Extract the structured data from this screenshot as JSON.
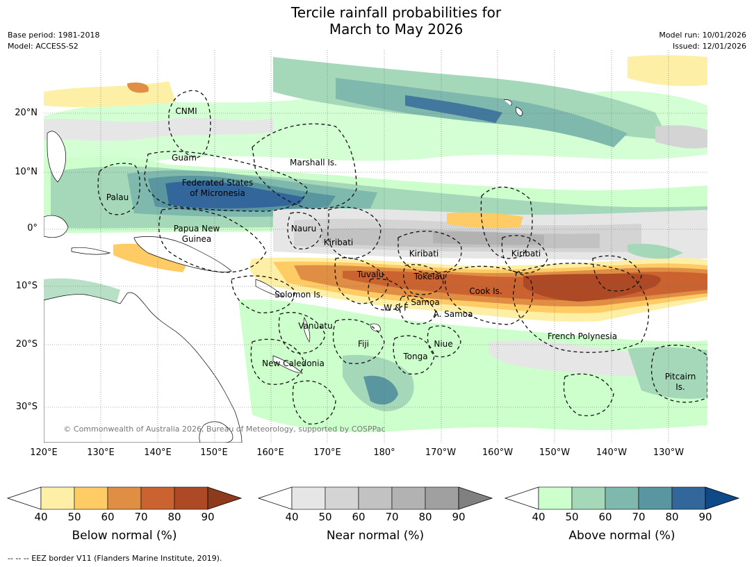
{
  "header": {
    "title_line1": "Tercile rainfall probabilities for",
    "title_line2": "March to May 2026",
    "base_period": "Base period: 1981-2018",
    "model": "Model: ACCESS-S2",
    "model_run": "Model run: 10/01/2026",
    "issued": "Issued: 12/01/2026"
  },
  "axes": {
    "lat_labels": [
      "20°N",
      "10°N",
      "0°",
      "10°S",
      "20°S",
      "30°S"
    ],
    "lon_labels": [
      "120°E",
      "130°E",
      "140°E",
      "150°E",
      "160°E",
      "170°E",
      "180°",
      "170°W",
      "160°W",
      "150°W",
      "140°W",
      "130°W"
    ]
  },
  "map_labels": {
    "cnmi": "CNMI",
    "guam": "Guam",
    "marshall": "Marshall Is.",
    "fsm_1": "Federated States",
    "fsm_2": "of Micronesia",
    "palau": "Palau",
    "png_1": "Papua New",
    "png_2": "Guinea",
    "nauru": "Nauru",
    "kiribati_w": "Kiribati",
    "kiribati_c": "Kiribati",
    "kiribati_e": "Kiribati",
    "tuvalu": "Tuvalu",
    "tokelau": "Tokelau",
    "cook": "Cook Is.",
    "solomon": "Solomon Is.",
    "wf": "W & F",
    "samoa": "Samoa",
    "asamoa": "A. Samoa",
    "vanuatu": "Vanuatu",
    "fiji": "Fiji",
    "niue": "Niue",
    "tonga": "Tonga",
    "french_polynesia": "French Polynesia",
    "new_caledonia": "New Caledonia",
    "pitcairn_1": "Pitcairn",
    "pitcairn_2": "Is.",
    "copyright": "© Commonwealth of Australia 2026, Bureau of Meteorology, supported by COSPPac"
  },
  "colorbars": [
    {
      "label": "Below normal (%)",
      "ticks": [
        "40",
        "50",
        "60",
        "70",
        "80",
        "90"
      ],
      "colors": [
        "#fdf0a6",
        "#fecb65",
        "#df8e44",
        "#cb6331",
        "#ad4a25"
      ],
      "extend_color": "#8e3a1c"
    },
    {
      "label": "Near normal (%)",
      "ticks": [
        "40",
        "50",
        "60",
        "70",
        "80",
        "90"
      ],
      "colors": [
        "#e6e6e6",
        "#d4d4d4",
        "#c2c2c2",
        "#b2b2b2",
        "#a0a0a0"
      ],
      "extend_color": "#808080"
    },
    {
      "label": "Above normal (%)",
      "ticks": [
        "40",
        "50",
        "60",
        "70",
        "80",
        "90"
      ],
      "colors": [
        "#ccffcc",
        "#a5d8b9",
        "#7fb8ad",
        "#5a96a0",
        "#33669a"
      ],
      "extend_color": "#0e4a8a"
    }
  ],
  "footnote": "--  --  -- EEZ border V11 (Flanders Marine Institute, 2019)."
}
